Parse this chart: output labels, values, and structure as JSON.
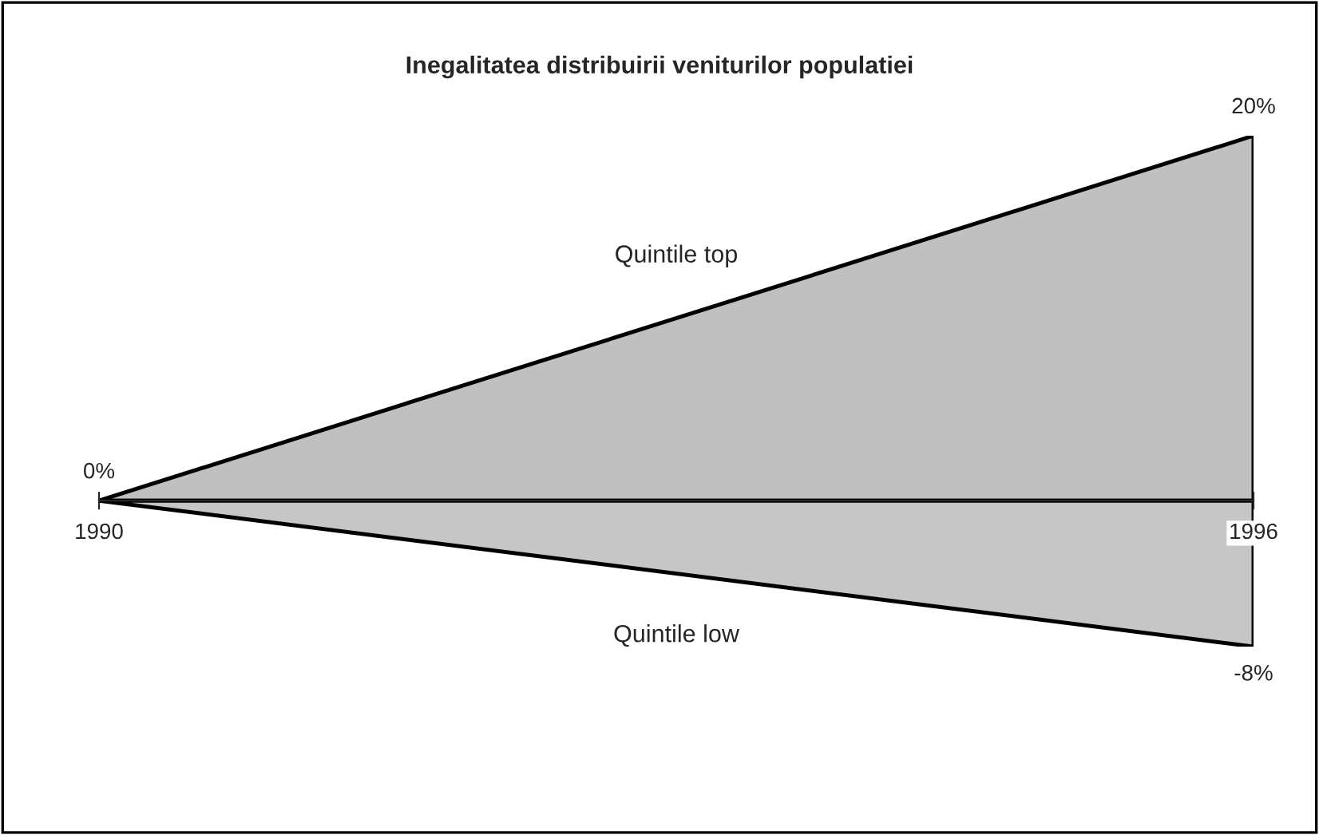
{
  "chart_data": {
    "type": "area",
    "title": "Inegalitatea distribuirii veniturilor populatiei",
    "categories": [
      "1990",
      "1996"
    ],
    "series": [
      {
        "name": "Quintile top",
        "color": "#c0c0c0",
        "values": [
          0,
          20
        ],
        "value_labels": [
          "0%",
          "20%"
        ]
      },
      {
        "name": "Quintile low",
        "color": "#c6c6c6",
        "values": [
          0,
          -8
        ],
        "value_labels": [
          null,
          "-8%"
        ]
      }
    ],
    "legend": false,
    "grid": false
  }
}
